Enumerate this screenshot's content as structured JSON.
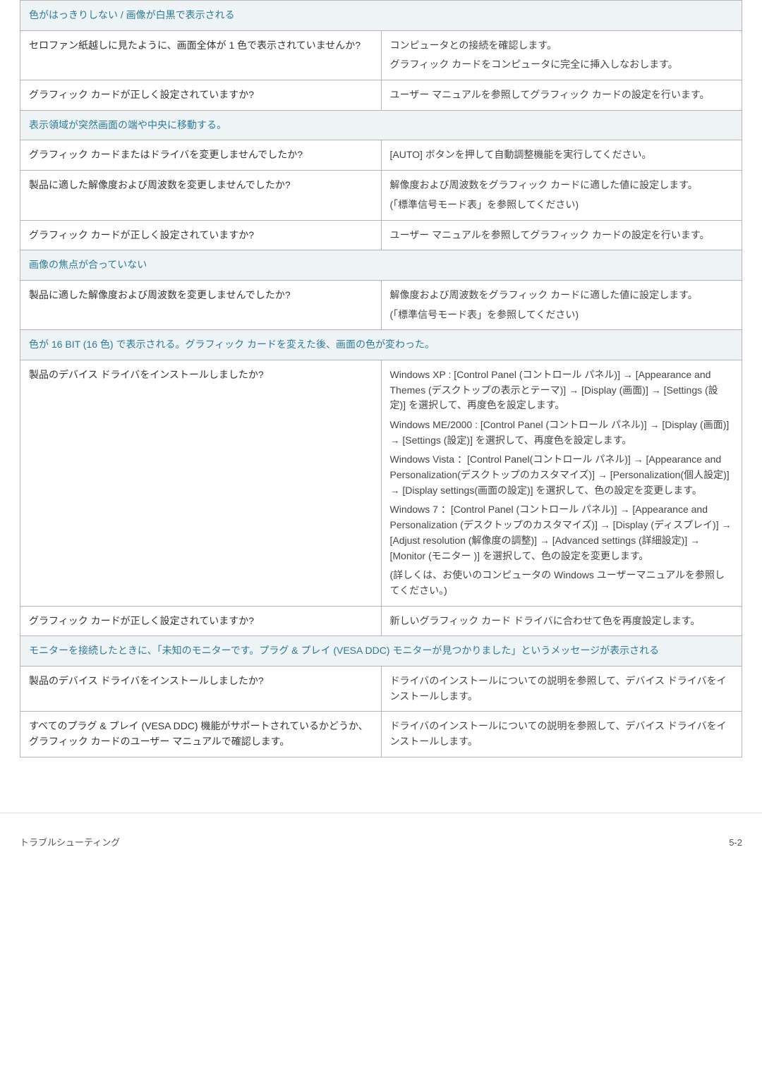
{
  "sections": [
    {
      "header": "色がはっきりしない / 画像が白黒で表示される",
      "rows": [
        {
          "q": "セロファン紙越しに見たように、画面全体が 1 色で表示されていませんか?",
          "a": [
            "コンピュータとの接続を確認します。",
            "グラフィック カードをコンピュータに完全に挿入しなおします。"
          ]
        },
        {
          "q": "グラフィック カードが正しく設定されていますか?",
          "a": [
            "ユーザー マニュアルを参照してグラフィック カードの設定を行います。"
          ]
        }
      ]
    },
    {
      "header": "表示領域が突然画面の端や中央に移動する。",
      "rows": [
        {
          "q": "グラフィック カードまたはドライバを変更しませんでしたか?",
          "a": [
            "[AUTO] ボタンを押して自動調整機能を実行してください。"
          ]
        },
        {
          "q": "製品に適した解像度および周波数を変更しませんでしたか?",
          "a": [
            "解像度および周波数をグラフィック カードに適した値に設定します。",
            "(「標準信号モード表」を参照してください)"
          ]
        },
        {
          "q": "グラフィック カードが正しく設定されていますか?",
          "a": [
            "ユーザー マニュアルを参照してグラフィック カードの設定を行います。"
          ]
        }
      ]
    },
    {
      "header": "画像の焦点が合っていない",
      "rows": [
        {
          "q": "製品に適した解像度および周波数を変更しませんでしたか?",
          "a": [
            "解像度および周波数をグラフィック カードに適した値に設定します。",
            "(「標準信号モード表」を参照してください)"
          ]
        }
      ]
    },
    {
      "header": "色が 16 BIT (16 色) で表示される。グラフィック カードを変えた後、画面の色が変わった。",
      "rows": [
        {
          "q": "製品のデバイス ドライバをインストールしましたか?",
          "a": [
            "Windows XP : [Control Panel (コントロール パネル)] → [Appearance and Themes (デスクトップの表示とテーマ)] → [Display (画面)] → [Settings (設定)] を選択して、再度色を設定します。",
            "Windows ME/2000 : [Control Panel (コントロール パネル)] → [Display (画面)] → [Settings (設定)] を選択して、再度色を設定します。",
            "Windows Vista ：[Control Panel(コントロール パネル)] → [Appearance and Personalization(デスクトップのカスタマイズ)] → [Personalization(個人設定)] → [Display settings(画面の設定)] を選択して、色の設定を変更します。",
            "Windows 7 ：[Control Panel (コントロール パネル)] → [Appearance and Personalization (デスクトップのカスタマイズ)] → [Display (ディスプレイ)] → [Adjust resolution (解像度の調整)] → [Advanced settings (詳細設定)] → [Monitor (モニター )] を選択して、色の設定を変更します。",
            "(詳しくは、お使いのコンピュータの Windows ユーザーマニュアルを参照してください。)"
          ]
        },
        {
          "q": "グラフィック カードが正しく設定されていますか?",
          "a": [
            "新しいグラフィック カード ドライバに合わせて色を再度設定します。"
          ]
        }
      ]
    },
    {
      "header": "モニターを接続したときに、「未知のモニターです。プラグ & プレイ (VESA DDC) モニターが見つかりました」というメッセージが表示される",
      "rows": [
        {
          "q": "製品のデバイス ドライバをインストールしましたか?",
          "a": [
            "ドライバのインストールについての説明を参照して、デバイス ドライバをインストールします。"
          ]
        },
        {
          "q": "すべてのプラグ & プレイ (VESA DDC) 機能がサポートされているかどうか、グラフィック カードのユーザー マニュアルで確認します。",
          "a": [
            "ドライバのインストールについての説明を参照して、デバイス ドライバをインストールします。"
          ]
        }
      ]
    }
  ],
  "footer": {
    "left": "トラブルシューティング",
    "right": "5-2"
  }
}
